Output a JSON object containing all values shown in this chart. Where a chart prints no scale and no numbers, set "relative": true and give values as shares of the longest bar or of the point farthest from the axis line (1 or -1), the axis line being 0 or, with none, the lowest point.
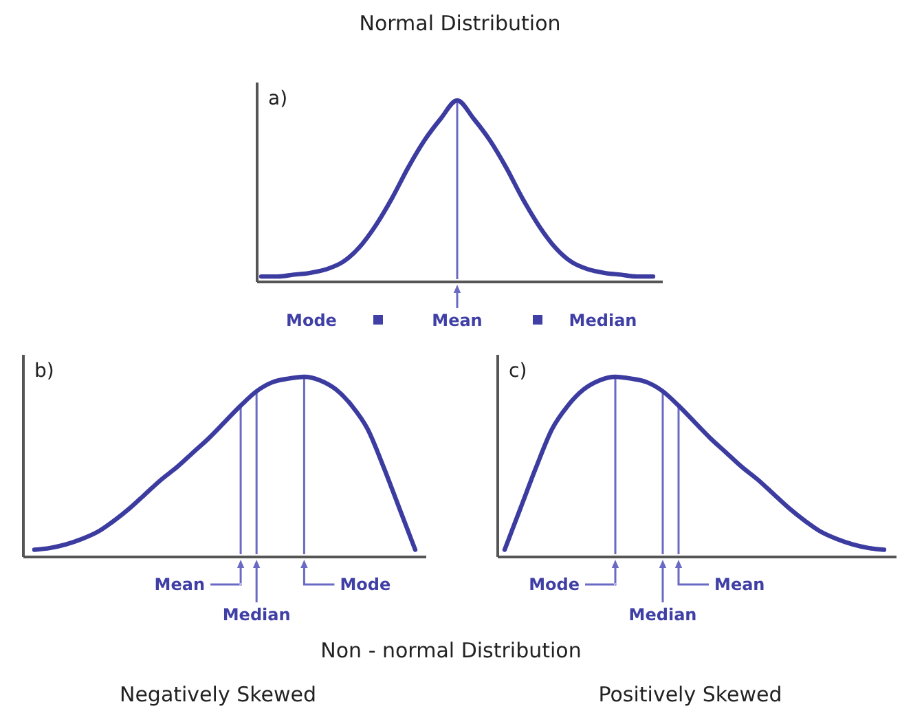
{
  "chart_data": [
    {
      "type": "line",
      "title": "Normal Distribution",
      "relative": true,
      "categories": [
        null,
        null,
        null,
        null,
        null,
        null,
        null,
        null,
        null,
        null,
        null,
        null,
        null,
        null,
        null,
        null,
        null,
        null,
        null,
        null,
        null,
        null,
        null,
        null,
        null
      ],
      "series": [
        {
          "color": "#3b3ba0",
          "values": [
            0.03,
            0.03,
            0.04,
            0.05,
            0.07,
            0.11,
            0.19,
            0.31,
            0.46,
            0.63,
            0.78,
            0.9,
            1,
            0.9,
            0.78,
            0.63,
            0.46,
            0.31,
            0.19,
            0.11,
            0.07,
            0.05,
            0.04,
            0.03,
            0.03
          ]
        }
      ],
      "annotations": [
        "a)",
        "Mode",
        "Mean",
        "Median"
      ]
    },
    {
      "type": "line",
      "relative": true,
      "xlabel": "Negatively Skewed",
      "categories": [
        null,
        null,
        null,
        null,
        null,
        null,
        null,
        null,
        null,
        null,
        null,
        null,
        null,
        null,
        null,
        null,
        null,
        null,
        null,
        null,
        null,
        null,
        null,
        null,
        null
      ],
      "series": [
        {
          "color": "#3b3ba0",
          "values": [
            0.04,
            0.05,
            0.07,
            0.1,
            0.14,
            0.2,
            0.27,
            0.35,
            0.43,
            0.5,
            0.58,
            0.66,
            0.75,
            0.84,
            0.92,
            0.97,
            0.99,
            1,
            0.98,
            0.93,
            0.84,
            0.71,
            0.5,
            0.27,
            0.04
          ]
        }
      ],
      "annotations": [
        "b)",
        "Mean",
        "Median",
        "Mode",
        "Non - normal Distribution"
      ]
    },
    {
      "type": "line",
      "relative": true,
      "xlabel": "Positively Skewed",
      "categories": [
        null,
        null,
        null,
        null,
        null,
        null,
        null,
        null,
        null,
        null,
        null,
        null,
        null,
        null,
        null,
        null,
        null,
        null,
        null,
        null,
        null,
        null,
        null,
        null,
        null
      ],
      "series": [
        {
          "color": "#3b3ba0",
          "values": [
            0.04,
            0.27,
            0.5,
            0.71,
            0.84,
            0.93,
            0.98,
            1,
            0.99,
            0.97,
            0.92,
            0.84,
            0.75,
            0.66,
            0.58,
            0.5,
            0.43,
            0.35,
            0.27,
            0.2,
            0.14,
            0.1,
            0.07,
            0.05,
            0.04
          ]
        }
      ],
      "annotations": [
        "c)",
        "Mode",
        "Median",
        "Mean"
      ]
    }
  ]
}
